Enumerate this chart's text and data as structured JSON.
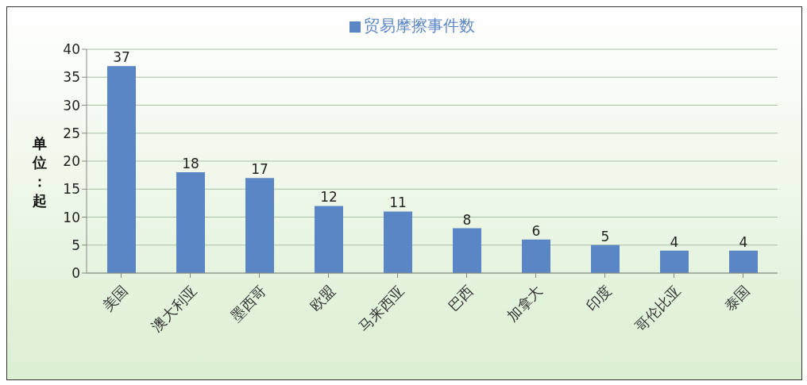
{
  "chart_data": {
    "type": "bar",
    "ylabel": "单位：起",
    "categories": [
      "美国",
      "澳大利亚",
      "墨西哥",
      "欧盟",
      "马来西亚",
      "巴西",
      "加拿大",
      "印度",
      "哥伦比亚",
      "泰国"
    ],
    "series": [
      {
        "name": "贸易摩擦事件数",
        "color": "#5b86c5",
        "values": [
          37,
          18,
          17,
          12,
          11,
          8,
          6,
          5,
          4,
          4
        ]
      }
    ],
    "ylim": [
      0,
      40
    ],
    "yticks": [
      0,
      5,
      10,
      15,
      20,
      25,
      30,
      35,
      40
    ],
    "grid": "y",
    "legend": "top",
    "data_labels": true
  }
}
